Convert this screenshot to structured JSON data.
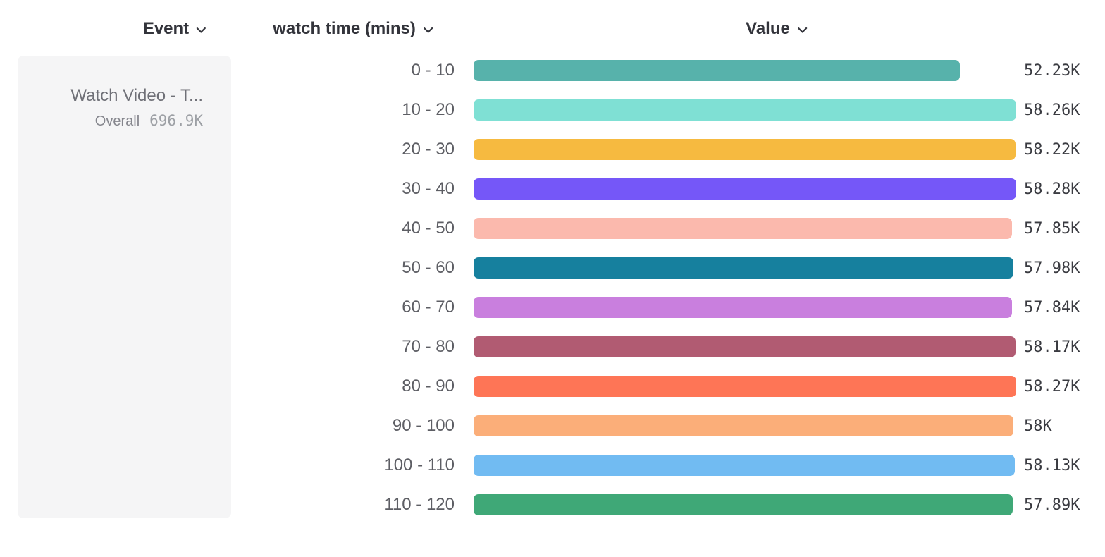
{
  "header": {
    "columns": [
      {
        "label": "Event"
      },
      {
        "label": "watch time (mins)"
      },
      {
        "label": "Value"
      }
    ]
  },
  "event_card": {
    "title": "Watch Video - T...",
    "overall_label": "Overall",
    "overall_value": "696.9K"
  },
  "chart_data": {
    "type": "bar",
    "orientation": "horizontal",
    "title": "",
    "xlabel": "Value",
    "ylabel": "watch time (mins)",
    "legend": false,
    "grid": false,
    "xlim": [
      0,
      58280
    ],
    "categories": [
      "0 - 10",
      "10 - 20",
      "20 - 30",
      "30 - 40",
      "40 - 50",
      "50 - 60",
      "60 - 70",
      "70 - 80",
      "80 - 90",
      "90 - 100",
      "100 - 110",
      "110 - 120"
    ],
    "values": [
      52230,
      58260,
      58220,
      58280,
      57850,
      57980,
      57840,
      58170,
      58270,
      58000,
      58130,
      57890
    ],
    "value_labels": [
      "52.23K",
      "58.26K",
      "58.22K",
      "58.28K",
      "57.85K",
      "57.98K",
      "57.84K",
      "58.17K",
      "58.27K",
      "58K",
      "58.13K",
      "57.89K"
    ],
    "bar_colors": [
      "#57B2AB",
      "#7FE0D4",
      "#F6BA40",
      "#7557F8",
      "#FBB9AD",
      "#16809E",
      "#C97FDE",
      "#B15B72",
      "#FE7556",
      "#FBAE79",
      "#71BBF2",
      "#3FA877"
    ]
  },
  "colors": {
    "header_text": "#33343B",
    "category_text": "#5D5E64",
    "value_text": "#3A3B41",
    "card_bg": "#F5F5F6",
    "card_title": "#6F7077",
    "card_overall_label": "#85868D",
    "card_overall_value": "#9DA0A5"
  }
}
